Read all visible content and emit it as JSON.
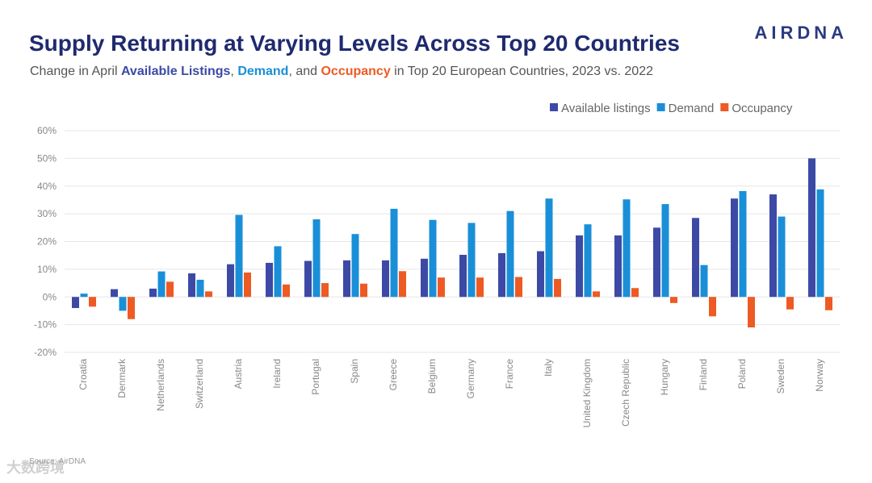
{
  "header": {
    "title": "Supply Returning at Varying Levels Across Top 20 Countries",
    "subtitle_pre": "Change in April ",
    "subtitle_k1": "Available Listings",
    "subtitle_sep1": ", ",
    "subtitle_k2": "Demand",
    "subtitle_sep2": ", and ",
    "subtitle_k3": "Occupancy",
    "subtitle_post": " in Top 20 European Countries, 2023 vs. 2022",
    "logo": "AIRDNA"
  },
  "footer": {
    "source": "Source: AirDNA",
    "watermark": "大数跨境"
  },
  "colors": {
    "listings": "#3c4aa6",
    "demand": "#1a8fd8",
    "occupancy": "#ee5a24",
    "grid": "#e6e6e6"
  },
  "chart_data": {
    "type": "bar",
    "title": "Supply Returning at Varying Levels Across Top 20 Countries",
    "xlabel": "",
    "ylabel": "",
    "ylim": [
      -20,
      60
    ],
    "yticks": [
      -20,
      -10,
      0,
      10,
      20,
      30,
      40,
      50,
      60
    ],
    "ytick_format": "%",
    "grid": true,
    "legend_position": "top-right",
    "categories": [
      "Croatia",
      "Denmark",
      "Netherlands",
      "Switzerland",
      "Austria",
      "Ireland",
      "Portugal",
      "Spain",
      "Greece",
      "Belgium",
      "Germany",
      "France",
      "Italy",
      "United Kingdom",
      "Czech Republic",
      "Hungary",
      "Finland",
      "Poland",
      "Sweden",
      "Norway"
    ],
    "series": [
      {
        "name": "Available listings",
        "key": "listings",
        "values": [
          -4,
          2.8,
          3,
          8.5,
          11.8,
          12.3,
          13,
          13.2,
          13.2,
          13.8,
          15.2,
          15.8,
          16.5,
          22.2,
          22.2,
          25,
          28.5,
          35.5,
          37,
          50
        ]
      },
      {
        "name": "Demand",
        "key": "demand",
        "values": [
          1.2,
          -5,
          9.2,
          6.2,
          29.6,
          18.3,
          28,
          22.7,
          31.8,
          27.8,
          26.7,
          31,
          35.5,
          26.2,
          35.2,
          33.5,
          11.5,
          38.2,
          29,
          38.8
        ]
      },
      {
        "name": "Occupancy",
        "key": "occupancy",
        "values": [
          -3.5,
          -8,
          5.5,
          2,
          8.8,
          4.5,
          5,
          4.8,
          9.3,
          7,
          7,
          7.2,
          6.5,
          2,
          3.2,
          -2.2,
          -7,
          -11,
          -4.5,
          -4.8
        ]
      }
    ]
  }
}
